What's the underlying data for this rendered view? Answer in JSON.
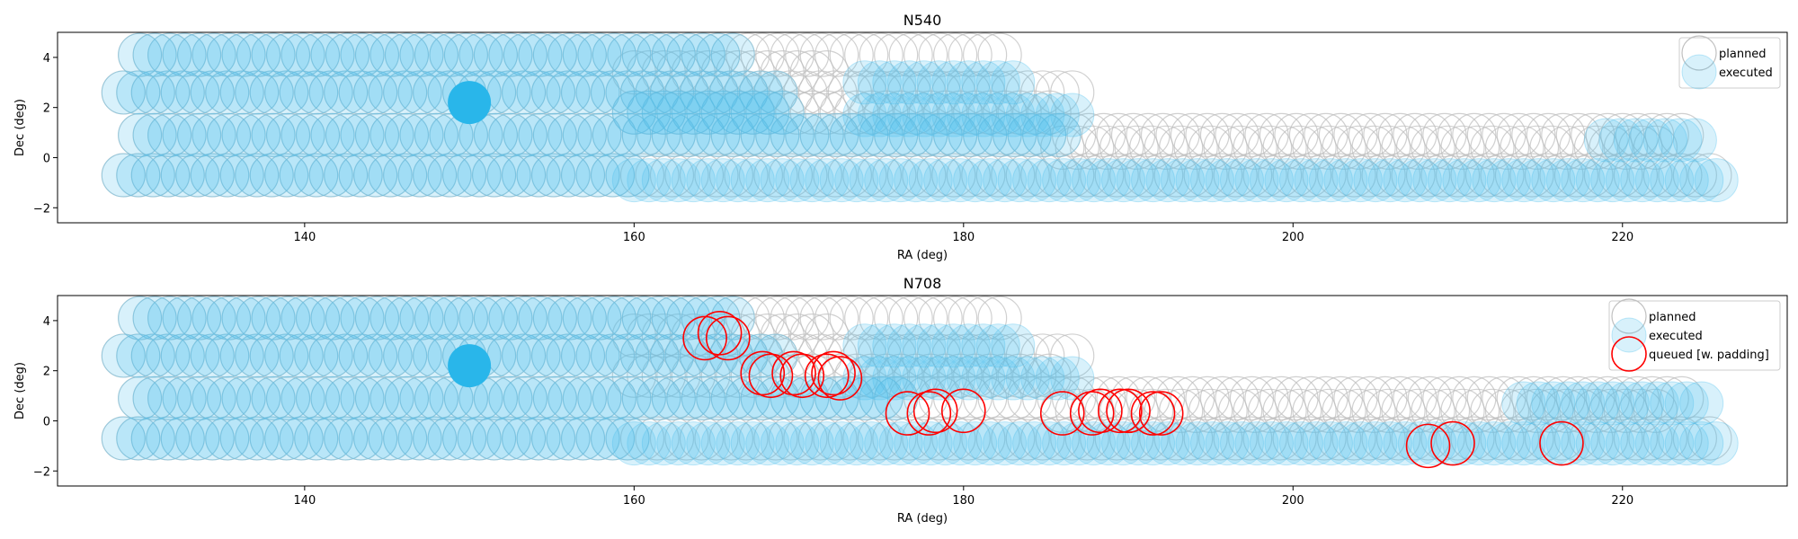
{
  "chart_data": [
    {
      "type": "scatter",
      "title": "N540",
      "xlabel": "RA (deg)",
      "ylabel": "Dec (deg)",
      "xlim": [
        125,
        230
      ],
      "ylim": [
        -2.6,
        5.0
      ],
      "xticks": [
        140,
        160,
        180,
        200,
        220
      ],
      "yticks": [
        -2,
        0,
        2,
        4
      ],
      "grid": false,
      "legend": "top-right",
      "colors": {
        "planned": "#c0c0c0",
        "executed": "#4dbfee",
        "highlight": "#29b6ea"
      },
      "legend_labels": [
        "planned",
        "executed"
      ],
      "planned_rows": [
        {
          "dec": 4.1,
          "ra_start": 130,
          "ra_end": 183,
          "step": 0.9
        },
        {
          "dec": 3.4,
          "ra_start": 160,
          "ra_end": 172,
          "step": 0.9
        },
        {
          "dec": 2.6,
          "ra_start": 129,
          "ra_end": 187,
          "step": 0.9
        },
        {
          "dec": 1.8,
          "ra_start": 160,
          "ra_end": 186,
          "step": 0.9
        },
        {
          "dec": 0.9,
          "ra_start": 130,
          "ra_end": 224,
          "step": 0.9
        },
        {
          "dec": 0.4,
          "ra_start": 186,
          "ra_end": 222,
          "step": 0.9
        },
        {
          "dec": -0.7,
          "ra_start": 129,
          "ra_end": 226,
          "step": 0.9
        }
      ],
      "executed_rows": [
        {
          "dec": 4.1,
          "ra_start": 130,
          "ra_end": 166,
          "step": 0.9
        },
        {
          "dec": 3.0,
          "ra_start": 174,
          "ra_end": 183,
          "step": 0.9
        },
        {
          "dec": 2.6,
          "ra_start": 129,
          "ra_end": 169,
          "step": 0.9
        },
        {
          "dec": 1.8,
          "ra_start": 160,
          "ra_end": 169,
          "step": 0.9
        },
        {
          "dec": 1.7,
          "ra_start": 174,
          "ra_end": 187,
          "step": 0.9
        },
        {
          "dec": 0.9,
          "ra_start": 130,
          "ra_end": 186,
          "step": 0.9
        },
        {
          "dec": 0.7,
          "ra_start": 219,
          "ra_end": 225,
          "step": 0.9
        },
        {
          "dec": -0.7,
          "ra_start": 129,
          "ra_end": 160,
          "step": 0.9
        },
        {
          "dec": -0.9,
          "ra_start": 160,
          "ra_end": 226,
          "step": 0.9
        }
      ],
      "highlight_points": [
        {
          "ra": 150.0,
          "dec": 2.2
        }
      ],
      "queued_points": []
    },
    {
      "type": "scatter",
      "title": "N708",
      "xlabel": "RA (deg)",
      "ylabel": "Dec (deg)",
      "xlim": [
        125,
        230
      ],
      "ylim": [
        -2.6,
        5.0
      ],
      "xticks": [
        140,
        160,
        180,
        200,
        220
      ],
      "yticks": [
        -2,
        0,
        2,
        4
      ],
      "grid": false,
      "legend": "top-right",
      "colors": {
        "planned": "#c0c0c0",
        "executed": "#4dbfee",
        "highlight": "#29b6ea",
        "queued": "#ff0000"
      },
      "legend_labels": [
        "planned",
        "executed",
        "queued [w. padding]"
      ],
      "planned_rows": [
        {
          "dec": 4.1,
          "ra_start": 130,
          "ra_end": 183,
          "step": 0.9
        },
        {
          "dec": 3.4,
          "ra_start": 160,
          "ra_end": 172,
          "step": 0.9
        },
        {
          "dec": 2.6,
          "ra_start": 129,
          "ra_end": 187,
          "step": 0.9
        },
        {
          "dec": 1.8,
          "ra_start": 160,
          "ra_end": 186,
          "step": 0.9
        },
        {
          "dec": 0.9,
          "ra_start": 130,
          "ra_end": 224,
          "step": 0.9
        },
        {
          "dec": 0.4,
          "ra_start": 186,
          "ra_end": 222,
          "step": 0.9
        },
        {
          "dec": -0.7,
          "ra_start": 129,
          "ra_end": 226,
          "step": 0.9
        }
      ],
      "executed_rows": [
        {
          "dec": 4.1,
          "ra_start": 130,
          "ra_end": 166,
          "step": 0.9
        },
        {
          "dec": 3.0,
          "ra_start": 174,
          "ra_end": 183,
          "step": 0.9
        },
        {
          "dec": 2.6,
          "ra_start": 129,
          "ra_end": 169,
          "step": 0.9
        },
        {
          "dec": 1.7,
          "ra_start": 174,
          "ra_end": 187,
          "step": 0.9
        },
        {
          "dec": 0.9,
          "ra_start": 130,
          "ra_end": 176,
          "step": 0.9
        },
        {
          "dec": 0.7,
          "ra_start": 214,
          "ra_end": 225,
          "step": 0.9
        },
        {
          "dec": -0.7,
          "ra_start": 129,
          "ra_end": 160,
          "step": 0.9
        },
        {
          "dec": -0.9,
          "ra_start": 160,
          "ra_end": 226,
          "step": 0.9
        }
      ],
      "highlight_points": [
        {
          "ra": 150.0,
          "dec": 2.2
        }
      ],
      "queued_points": [
        {
          "ra": 164.3,
          "dec": 3.3
        },
        {
          "ra": 165.2,
          "dec": 3.5
        },
        {
          "ra": 165.7,
          "dec": 3.3
        },
        {
          "ra": 167.8,
          "dec": 1.9
        },
        {
          "ra": 168.3,
          "dec": 1.8
        },
        {
          "ra": 169.7,
          "dec": 1.9
        },
        {
          "ra": 170.2,
          "dec": 1.8
        },
        {
          "ra": 171.7,
          "dec": 1.8
        },
        {
          "ra": 172.1,
          "dec": 1.9
        },
        {
          "ra": 172.5,
          "dec": 1.7
        },
        {
          "ra": 176.6,
          "dec": 0.3
        },
        {
          "ra": 177.9,
          "dec": 0.3
        },
        {
          "ra": 178.3,
          "dec": 0.4
        },
        {
          "ra": 180.0,
          "dec": 0.4
        },
        {
          "ra": 186.0,
          "dec": 0.3
        },
        {
          "ra": 187.8,
          "dec": 0.3
        },
        {
          "ra": 188.3,
          "dec": 0.4
        },
        {
          "ra": 189.5,
          "dec": 0.4
        },
        {
          "ra": 190.0,
          "dec": 0.4
        },
        {
          "ra": 191.5,
          "dec": 0.3
        },
        {
          "ra": 192.0,
          "dec": 0.3
        },
        {
          "ra": 208.2,
          "dec": -1.0
        },
        {
          "ra": 209.7,
          "dec": -0.9
        },
        {
          "ra": 216.3,
          "dec": -0.9
        }
      ]
    }
  ]
}
